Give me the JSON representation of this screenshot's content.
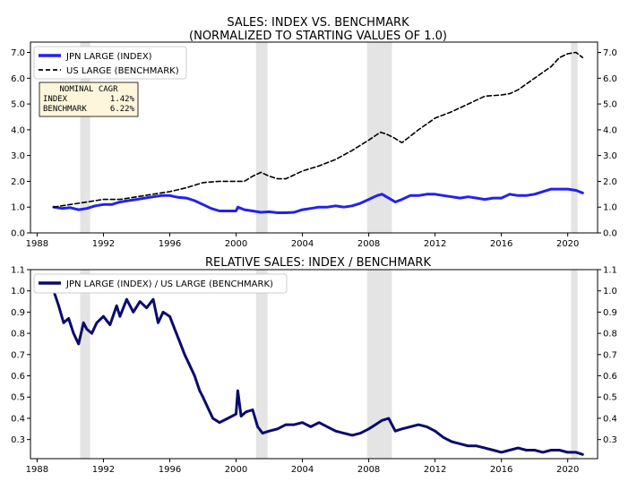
{
  "chart_data": [
    {
      "type": "line",
      "title": "SALES: INDEX VS. BENCHMARK",
      "subtitle": "(NORMALIZED TO STARTING VALUES OF 1.0)",
      "xlabel": "",
      "ylabel": "",
      "xlim": [
        1987.6,
        2021.8
      ],
      "ylim": [
        0,
        7.4
      ],
      "xticks": [
        1988,
        1992,
        1996,
        2000,
        2004,
        2008,
        2012,
        2016,
        2020
      ],
      "yticks": [
        0.0,
        1.0,
        2.0,
        3.0,
        4.0,
        5.0,
        6.0,
        7.0
      ],
      "ytick_labels": [
        "0.0",
        "1.0",
        "2.0",
        "3.0",
        "4.0",
        "5.0",
        "6.0",
        "7.0"
      ],
      "grid": false,
      "legend": "top-left",
      "recessions": [
        [
          1990.6,
          1991.2
        ],
        [
          2001.2,
          2001.9
        ],
        [
          2007.9,
          2009.4
        ],
        [
          2020.2,
          2020.6
        ]
      ],
      "series": [
        {
          "name": "JPN LARGE (INDEX)",
          "color": "#2222ee",
          "style": "solid",
          "x": [
            1989.0,
            1989.5,
            1990.0,
            1990.5,
            1991.0,
            1991.5,
            1992.0,
            1992.5,
            1993.0,
            1993.5,
            1994.0,
            1994.5,
            1995.0,
            1995.5,
            1996.0,
            1996.5,
            1997.0,
            1997.5,
            1998.0,
            1998.5,
            1999.0,
            1999.5,
            2000.0,
            2000.1,
            2000.5,
            2001.0,
            2001.5,
            2002.0,
            2002.5,
            2003.0,
            2003.5,
            2004.0,
            2004.5,
            2005.0,
            2005.5,
            2006.0,
            2006.5,
            2007.0,
            2007.5,
            2008.0,
            2008.5,
            2008.8,
            2009.2,
            2009.6,
            2010.0,
            2010.5,
            2011.0,
            2011.5,
            2012.0,
            2012.5,
            2013.0,
            2013.5,
            2014.0,
            2014.5,
            2015.0,
            2015.5,
            2016.0,
            2016.5,
            2017.0,
            2017.5,
            2018.0,
            2018.5,
            2019.0,
            2019.5,
            2020.0,
            2020.5,
            2020.9
          ],
          "y": [
            1.0,
            0.95,
            0.98,
            0.9,
            0.95,
            1.05,
            1.1,
            1.1,
            1.2,
            1.25,
            1.3,
            1.35,
            1.4,
            1.45,
            1.45,
            1.38,
            1.35,
            1.25,
            1.1,
            0.95,
            0.85,
            0.85,
            0.85,
            1.0,
            0.9,
            0.85,
            0.8,
            0.82,
            0.78,
            0.78,
            0.8,
            0.9,
            0.95,
            1.0,
            1.0,
            1.05,
            1.0,
            1.05,
            1.15,
            1.3,
            1.45,
            1.5,
            1.35,
            1.2,
            1.3,
            1.45,
            1.45,
            1.5,
            1.5,
            1.45,
            1.4,
            1.35,
            1.4,
            1.35,
            1.3,
            1.35,
            1.35,
            1.5,
            1.45,
            1.45,
            1.5,
            1.6,
            1.7,
            1.7,
            1.7,
            1.65,
            1.55
          ]
        },
        {
          "name": "US LARGE (BENCHMARK)",
          "color": "#000000",
          "style": "dashed",
          "x": [
            1989.0,
            1990.0,
            1991.0,
            1992.0,
            1993.0,
            1994.0,
            1995.0,
            1996.0,
            1997.0,
            1998.0,
            1999.0,
            2000.0,
            2000.5,
            2001.0,
            2001.5,
            2002.0,
            2002.5,
            2003.0,
            2004.0,
            2005.0,
            2006.0,
            2007.0,
            2008.0,
            2008.7,
            2009.0,
            2009.5,
            2010.0,
            2011.0,
            2012.0,
            2013.0,
            2014.0,
            2015.0,
            2016.0,
            2016.5,
            2017.0,
            2018.0,
            2019.0,
            2019.5,
            2020.0,
            2020.5,
            2020.9
          ],
          "y": [
            1.0,
            1.1,
            1.2,
            1.3,
            1.3,
            1.4,
            1.5,
            1.6,
            1.75,
            1.95,
            2.0,
            2.0,
            2.0,
            2.2,
            2.35,
            2.2,
            2.1,
            2.1,
            2.4,
            2.6,
            2.85,
            3.2,
            3.6,
            3.9,
            3.85,
            3.7,
            3.5,
            4.0,
            4.45,
            4.7,
            5.0,
            5.3,
            5.35,
            5.4,
            5.55,
            6.0,
            6.45,
            6.8,
            6.95,
            7.0,
            6.8
          ]
        }
      ],
      "annotation": {
        "title": "NOMINAL CAGR",
        "rows": [
          {
            "label": "INDEX",
            "value": "1.42%"
          },
          {
            "label": "BENCHMARK",
            "value": "6.22%"
          }
        ]
      }
    },
    {
      "type": "line",
      "title": "RELATIVE SALES: INDEX / BENCHMARK",
      "xlabel": "",
      "ylabel": "",
      "xlim": [
        1987.6,
        2021.8
      ],
      "ylim": [
        0.21,
        1.1
      ],
      "xticks": [
        1988,
        1992,
        1996,
        2000,
        2004,
        2008,
        2012,
        2016,
        2020
      ],
      "yticks": [
        0.3,
        0.4,
        0.5,
        0.6,
        0.7,
        0.8,
        0.9,
        1.0,
        1.1
      ],
      "ytick_labels": [
        "0.3",
        "0.4",
        "0.5",
        "0.6",
        "0.7",
        "0.8",
        "0.9",
        "1.0",
        "1.1"
      ],
      "grid": false,
      "legend": "top-left",
      "recessions": [
        [
          1990.6,
          1991.2
        ],
        [
          2001.2,
          2001.9
        ],
        [
          2007.9,
          2009.4
        ],
        [
          2020.2,
          2020.6
        ]
      ],
      "series": [
        {
          "name": "JPN LARGE (INDEX) / US LARGE (BENCHMARK)",
          "color": "#0a0a6e",
          "style": "solid",
          "x": [
            1989.0,
            1989.3,
            1989.6,
            1989.9,
            1990.2,
            1990.5,
            1990.8,
            1991.0,
            1991.3,
            1991.6,
            1992.0,
            1992.4,
            1992.8,
            1993.0,
            1993.4,
            1993.8,
            1994.2,
            1994.6,
            1995.0,
            1995.3,
            1995.6,
            1996.0,
            1996.3,
            1996.6,
            1996.9,
            1997.2,
            1997.5,
            1997.8,
            1998.0,
            1998.3,
            1998.6,
            1999.0,
            1999.5,
            2000.0,
            2000.1,
            2000.3,
            2000.6,
            2001.0,
            2001.3,
            2001.6,
            2002.0,
            2002.5,
            2003.0,
            2003.5,
            2004.0,
            2004.5,
            2005.0,
            2005.5,
            2006.0,
            2006.5,
            2007.0,
            2007.5,
            2008.0,
            2008.4,
            2008.8,
            2009.2,
            2009.6,
            2010.0,
            2010.5,
            2011.0,
            2011.5,
            2012.0,
            2012.5,
            2013.0,
            2013.5,
            2014.0,
            2014.5,
            2015.0,
            2015.5,
            2016.0,
            2016.5,
            2017.0,
            2017.5,
            2018.0,
            2018.5,
            2019.0,
            2019.5,
            2020.0,
            2020.5,
            2020.9
          ],
          "y": [
            1.0,
            0.93,
            0.85,
            0.87,
            0.8,
            0.75,
            0.85,
            0.82,
            0.8,
            0.85,
            0.88,
            0.84,
            0.93,
            0.88,
            0.96,
            0.9,
            0.95,
            0.92,
            0.96,
            0.85,
            0.9,
            0.88,
            0.82,
            0.76,
            0.7,
            0.65,
            0.6,
            0.53,
            0.5,
            0.45,
            0.4,
            0.38,
            0.4,
            0.42,
            0.53,
            0.41,
            0.43,
            0.44,
            0.36,
            0.33,
            0.34,
            0.35,
            0.37,
            0.37,
            0.38,
            0.36,
            0.38,
            0.36,
            0.34,
            0.33,
            0.32,
            0.33,
            0.35,
            0.37,
            0.39,
            0.4,
            0.34,
            0.35,
            0.36,
            0.37,
            0.36,
            0.34,
            0.31,
            0.29,
            0.28,
            0.27,
            0.27,
            0.26,
            0.25,
            0.24,
            0.25,
            0.26,
            0.25,
            0.25,
            0.24,
            0.25,
            0.25,
            0.24,
            0.24,
            0.23
          ]
        }
      ]
    }
  ]
}
